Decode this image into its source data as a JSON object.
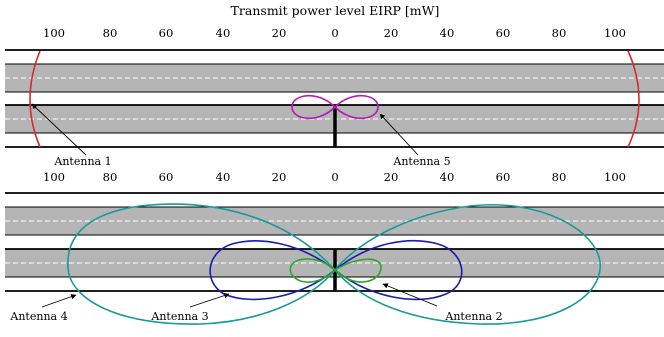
{
  "title": "Transmit power level EIRP [mW]",
  "axis_ticks": [
    "100",
    "80",
    "60",
    "40",
    "20",
    "0",
    "20",
    "40",
    "60",
    "80",
    "100"
  ],
  "colors": {
    "road": "#b5b5b5",
    "lane_dash": "#ffffff",
    "antenna1": "#d42a2a",
    "antenna2": "#27a82a",
    "antenna3": "#1b1bb0",
    "antenna4": "#1a9a9a",
    "antenna5": "#b41ab4"
  },
  "panels": [
    {
      "antennas": [
        {
          "label": "Antenna 1",
          "color_key": "antenna1"
        },
        {
          "label": "Antenna 5",
          "color_key": "antenna5"
        }
      ]
    },
    {
      "antennas": [
        {
          "label": "Antenna 4",
          "color_key": "antenna4"
        },
        {
          "label": "Antenna 3",
          "color_key": "antenna3"
        },
        {
          "label": "Antenna 2",
          "color_key": "antenna2"
        }
      ]
    }
  ]
}
